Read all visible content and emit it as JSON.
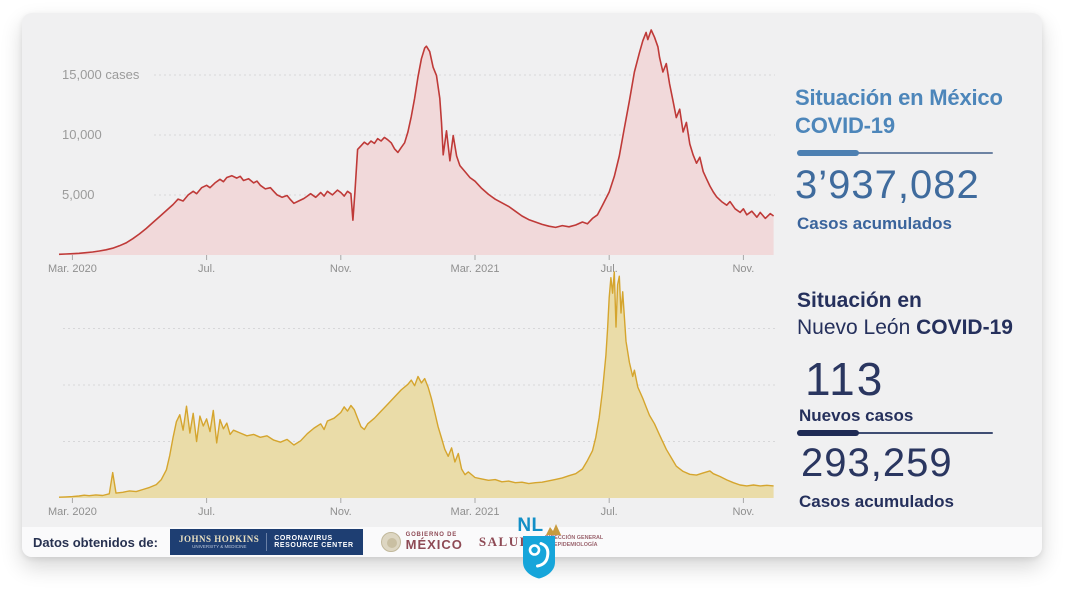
{
  "right_panel": {
    "mexico": {
      "title_line1": "Situación en México",
      "title_line2": "COVID-19",
      "cumulative_value": "3’937,082",
      "cumulative_label": "Casos acumulados"
    },
    "nuevo_leon": {
      "title_line1": "Situación en",
      "title_line2_regular": "Nuevo León ",
      "title_line2_bold": "COVID-19",
      "new_cases_value": "113",
      "new_cases_label": "Nuevos casos",
      "cumulative_value": "293,259",
      "cumulative_label": "Casos acumulados"
    }
  },
  "footer": {
    "source_label": "Datos obtenidos de:",
    "johns_hopkins": {
      "name_line1": "JOHNS HOPKINS",
      "name_line2": "UNIVERSITY & MEDICINE",
      "center_line1": "CORONAVIRUS",
      "center_line2": "RESOURCE CENTER"
    },
    "gobierno_mexico": {
      "line1": "GOBIERNO DE",
      "line2": "MÉXICO"
    },
    "salud_label": "SALUD",
    "direccion": {
      "line1": "DIRECCIÓN GENERAL",
      "line2": "DE EPIDEMIOLOGÍA"
    },
    "nuevo_leon_logo_text": "NL"
  },
  "colors": {
    "mexico_line": "#bf3a38",
    "mexico_fill": "#f1d9da",
    "nuevo_leon_line": "#d5a52e",
    "nuevo_leon_fill": "#eadca8",
    "title_blue": "#4d86ba",
    "number_blue": "#3f6b9d",
    "navy": "#25305c",
    "maroon": "#8e4a55",
    "johns_hopkins_navy": "#1e3e72",
    "nl_shield_blue": "#16a5da",
    "nl_gold": "#c89b3f",
    "card_background": "#f0f0f1"
  },
  "chart_data": [
    {
      "type": "area",
      "name": "mexico-daily-cases",
      "line_color": "#bf3a38",
      "fill_color": "#f1d9da",
      "line_width": 1.6,
      "ylim": [
        0,
        20000
      ],
      "x_range": [
        -0.4,
        21.0
      ],
      "gridlines": [
        {
          "value": 5000,
          "label": "5,000"
        },
        {
          "value": 10000,
          "label": "10,000"
        },
        {
          "value": 15000,
          "label": "15,000 cases"
        }
      ],
      "x_ticks": [
        {
          "month": 0,
          "label": "Mar. 2020"
        },
        {
          "month": 4,
          "label": "Jul."
        },
        {
          "month": 8,
          "label": "Nov."
        },
        {
          "month": 12,
          "label": "Mar. 2021"
        },
        {
          "month": 16,
          "label": "Jul."
        },
        {
          "month": 20,
          "label": "Nov."
        }
      ],
      "points": [
        [
          -0.4,
          60
        ],
        [
          -0.2,
          80
        ],
        [
          0,
          110
        ],
        [
          0.2,
          140
        ],
        [
          0.4,
          190
        ],
        [
          0.6,
          250
        ],
        [
          0.8,
          330
        ],
        [
          1,
          430
        ],
        [
          1.2,
          570
        ],
        [
          1.4,
          770
        ],
        [
          1.6,
          1010
        ],
        [
          1.8,
          1360
        ],
        [
          2,
          1760
        ],
        [
          2.2,
          2210
        ],
        [
          2.4,
          2710
        ],
        [
          2.6,
          3210
        ],
        [
          2.8,
          3710
        ],
        [
          3,
          4210
        ],
        [
          3.15,
          4660
        ],
        [
          3.3,
          4500
        ],
        [
          3.45,
          5010
        ],
        [
          3.6,
          5310
        ],
        [
          3.7,
          5110
        ],
        [
          3.85,
          5610
        ],
        [
          4,
          5810
        ],
        [
          4.1,
          5610
        ],
        [
          4.25,
          6010
        ],
        [
          4.4,
          6310
        ],
        [
          4.5,
          6110
        ],
        [
          4.6,
          6460
        ],
        [
          4.75,
          6610
        ],
        [
          4.9,
          6410
        ],
        [
          5,
          6560
        ],
        [
          5.1,
          6210
        ],
        [
          5.25,
          6360
        ],
        [
          5.4,
          6010
        ],
        [
          5.5,
          6160
        ],
        [
          5.6,
          5810
        ],
        [
          5.75,
          5510
        ],
        [
          5.9,
          5610
        ],
        [
          6,
          5310
        ],
        [
          6.1,
          5010
        ],
        [
          6.25,
          4810
        ],
        [
          6.4,
          4960
        ],
        [
          6.5,
          4610
        ],
        [
          6.6,
          4310
        ],
        [
          6.75,
          4510
        ],
        [
          6.9,
          4710
        ],
        [
          7,
          4910
        ],
        [
          7.1,
          5110
        ],
        [
          7.25,
          4810
        ],
        [
          7.4,
          5210
        ],
        [
          7.5,
          4910
        ],
        [
          7.6,
          5310
        ],
        [
          7.75,
          5010
        ],
        [
          7.9,
          5410
        ],
        [
          8,
          5210
        ],
        [
          8.1,
          4910
        ],
        [
          8.2,
          5310
        ],
        [
          8.3,
          5110
        ],
        [
          8.36,
          2900
        ],
        [
          8.42,
          5200
        ],
        [
          8.5,
          8800
        ],
        [
          8.6,
          9100
        ],
        [
          8.7,
          9400
        ],
        [
          8.8,
          9200
        ],
        [
          8.9,
          9500
        ],
        [
          9,
          9300
        ],
        [
          9.1,
          9700
        ],
        [
          9.2,
          9500
        ],
        [
          9.3,
          9800
        ],
        [
          9.4,
          9600
        ],
        [
          9.5,
          9350
        ],
        [
          9.6,
          8850
        ],
        [
          9.7,
          8550
        ],
        [
          9.8,
          8950
        ],
        [
          9.9,
          9350
        ],
        [
          10,
          10250
        ],
        [
          10.1,
          11550
        ],
        [
          10.2,
          13050
        ],
        [
          10.3,
          14850
        ],
        [
          10.4,
          16350
        ],
        [
          10.5,
          17250
        ],
        [
          10.55,
          17400
        ],
        [
          10.65,
          16950
        ],
        [
          10.75,
          15650
        ],
        [
          10.85,
          14950
        ],
        [
          10.95,
          13050
        ],
        [
          11,
          11050
        ],
        [
          11.05,
          8350
        ],
        [
          11.15,
          10350
        ],
        [
          11.25,
          7850
        ],
        [
          11.35,
          9950
        ],
        [
          11.45,
          8250
        ],
        [
          11.55,
          7450
        ],
        [
          11.7,
          6950
        ],
        [
          11.85,
          6450
        ],
        [
          12,
          6150
        ],
        [
          12.2,
          5550
        ],
        [
          12.4,
          5050
        ],
        [
          12.6,
          4650
        ],
        [
          12.8,
          4350
        ],
        [
          13,
          4050
        ],
        [
          13.2,
          3650
        ],
        [
          13.4,
          3250
        ],
        [
          13.6,
          2950
        ],
        [
          13.8,
          2750
        ],
        [
          14,
          2550
        ],
        [
          14.2,
          2400
        ],
        [
          14.4,
          2300
        ],
        [
          14.6,
          2450
        ],
        [
          14.8,
          2350
        ],
        [
          15,
          2500
        ],
        [
          15.2,
          2750
        ],
        [
          15.35,
          2600
        ],
        [
          15.5,
          3050
        ],
        [
          15.65,
          3350
        ],
        [
          15.8,
          4150
        ],
        [
          16,
          5250
        ],
        [
          16.15,
          6550
        ],
        [
          16.3,
          8250
        ],
        [
          16.45,
          10550
        ],
        [
          16.6,
          12850
        ],
        [
          16.75,
          15250
        ],
        [
          16.9,
          16850
        ],
        [
          17,
          17850
        ],
        [
          17.1,
          18550
        ],
        [
          17.15,
          17950
        ],
        [
          17.25,
          18750
        ],
        [
          17.35,
          18150
        ],
        [
          17.45,
          17350
        ],
        [
          17.5,
          16450
        ],
        [
          17.6,
          15250
        ],
        [
          17.7,
          15950
        ],
        [
          17.8,
          14250
        ],
        [
          17.9,
          12850
        ],
        [
          18,
          11450
        ],
        [
          18.1,
          12150
        ],
        [
          18.2,
          10250
        ],
        [
          18.3,
          11050
        ],
        [
          18.4,
          9250
        ],
        [
          18.5,
          8350
        ],
        [
          18.6,
          7650
        ],
        [
          18.7,
          8150
        ],
        [
          18.8,
          6950
        ],
        [
          18.9,
          6350
        ],
        [
          19,
          5750
        ],
        [
          19.1,
          5250
        ],
        [
          19.2,
          4850
        ],
        [
          19.35,
          4450
        ],
        [
          19.5,
          4150
        ],
        [
          19.6,
          4450
        ],
        [
          19.75,
          3850
        ],
        [
          19.9,
          3550
        ],
        [
          20,
          3850
        ],
        [
          20.1,
          3350
        ],
        [
          20.25,
          3650
        ],
        [
          20.4,
          3150
        ],
        [
          20.5,
          3550
        ],
        [
          20.65,
          3050
        ],
        [
          20.8,
          3450
        ],
        [
          20.9,
          3250
        ]
      ]
    },
    {
      "type": "area",
      "name": "nuevo-leon-daily-cases",
      "line_color": "#d5a52e",
      "fill_color": "#eadca8",
      "line_width": 1.4,
      "ylim": [
        0,
        1600
      ],
      "x_range": [
        -0.4,
        21.0
      ],
      "gridlines": [
        {
          "value": 400,
          "label": ""
        },
        {
          "value": 800,
          "label": ""
        },
        {
          "value": 1200,
          "label": ""
        }
      ],
      "x_ticks": [
        {
          "month": 0,
          "label": "Mar. 2020"
        },
        {
          "month": 4,
          "label": "Jul."
        },
        {
          "month": 8,
          "label": "Nov."
        },
        {
          "month": 12,
          "label": "Mar. 2021"
        },
        {
          "month": 16,
          "label": "Jul."
        },
        {
          "month": 20,
          "label": "Nov."
        }
      ],
      "points": [
        [
          -0.4,
          6
        ],
        [
          -0.2,
          8
        ],
        [
          0,
          10
        ],
        [
          0.2,
          14
        ],
        [
          0.35,
          20
        ],
        [
          0.5,
          16
        ],
        [
          0.7,
          22
        ],
        [
          0.9,
          18
        ],
        [
          1.1,
          30
        ],
        [
          1.2,
          180
        ],
        [
          1.3,
          35
        ],
        [
          1.5,
          40
        ],
        [
          1.7,
          50
        ],
        [
          1.9,
          45
        ],
        [
          2.1,
          60
        ],
        [
          2.3,
          75
        ],
        [
          2.5,
          95
        ],
        [
          2.65,
          130
        ],
        [
          2.8,
          200
        ],
        [
          2.9,
          300
        ],
        [
          3,
          430
        ],
        [
          3.1,
          540
        ],
        [
          3.2,
          590
        ],
        [
          3.3,
          480
        ],
        [
          3.4,
          650
        ],
        [
          3.5,
          460
        ],
        [
          3.6,
          600
        ],
        [
          3.7,
          400
        ],
        [
          3.8,
          580
        ],
        [
          3.9,
          510
        ],
        [
          4,
          560
        ],
        [
          4.1,
          470
        ],
        [
          4.2,
          620
        ],
        [
          4.3,
          390
        ],
        [
          4.4,
          555
        ],
        [
          4.5,
          490
        ],
        [
          4.6,
          530
        ],
        [
          4.7,
          450
        ],
        [
          4.8,
          480
        ],
        [
          5,
          460
        ],
        [
          5.2,
          440
        ],
        [
          5.4,
          450
        ],
        [
          5.6,
          430
        ],
        [
          5.8,
          440
        ],
        [
          6,
          410
        ],
        [
          6.2,
          395
        ],
        [
          6.4,
          415
        ],
        [
          6.6,
          375
        ],
        [
          6.8,
          405
        ],
        [
          7,
          455
        ],
        [
          7.2,
          495
        ],
        [
          7.4,
          525
        ],
        [
          7.5,
          485
        ],
        [
          7.6,
          545
        ],
        [
          7.8,
          565
        ],
        [
          8,
          605
        ],
        [
          8.1,
          645
        ],
        [
          8.2,
          615
        ],
        [
          8.3,
          655
        ],
        [
          8.4,
          625
        ],
        [
          8.5,
          565
        ],
        [
          8.6,
          505
        ],
        [
          8.7,
          485
        ],
        [
          8.8,
          525
        ],
        [
          9,
          565
        ],
        [
          9.2,
          615
        ],
        [
          9.4,
          665
        ],
        [
          9.6,
          715
        ],
        [
          9.8,
          765
        ],
        [
          10,
          805
        ],
        [
          10.1,
          835
        ],
        [
          10.2,
          795
        ],
        [
          10.3,
          860
        ],
        [
          10.4,
          815
        ],
        [
          10.5,
          845
        ],
        [
          10.6,
          785
        ],
        [
          10.7,
          705
        ],
        [
          10.8,
          605
        ],
        [
          10.9,
          505
        ],
        [
          11,
          425
        ],
        [
          11.1,
          345
        ],
        [
          11.2,
          295
        ],
        [
          11.3,
          355
        ],
        [
          11.4,
          255
        ],
        [
          11.5,
          315
        ],
        [
          11.6,
          205
        ],
        [
          11.7,
          165
        ],
        [
          11.8,
          185
        ],
        [
          12,
          145
        ],
        [
          12.2,
          135
        ],
        [
          12.4,
          125
        ],
        [
          12.6,
          130
        ],
        [
          12.8,
          115
        ],
        [
          13,
          120
        ],
        [
          13.2,
          108
        ],
        [
          13.4,
          112
        ],
        [
          13.6,
          102
        ],
        [
          13.8,
          108
        ],
        [
          14,
          112
        ],
        [
          14.2,
          122
        ],
        [
          14.4,
          132
        ],
        [
          14.6,
          142
        ],
        [
          14.8,
          158
        ],
        [
          15,
          172
        ],
        [
          15.2,
          205
        ],
        [
          15.35,
          265
        ],
        [
          15.5,
          335
        ],
        [
          15.6,
          430
        ],
        [
          15.7,
          570
        ],
        [
          15.8,
          760
        ],
        [
          15.9,
          1010
        ],
        [
          15.95,
          1200
        ],
        [
          16,
          1420
        ],
        [
          16.05,
          1560
        ],
        [
          16.1,
          1450
        ],
        [
          16.15,
          1600
        ],
        [
          16.2,
          1210
        ],
        [
          16.25,
          1510
        ],
        [
          16.3,
          1570
        ],
        [
          16.35,
          1310
        ],
        [
          16.4,
          1460
        ],
        [
          16.5,
          1110
        ],
        [
          16.6,
          960
        ],
        [
          16.7,
          860
        ],
        [
          16.75,
          905
        ],
        [
          16.85,
          785
        ],
        [
          17,
          705
        ],
        [
          17.1,
          645
        ],
        [
          17.2,
          585
        ],
        [
          17.35,
          525
        ],
        [
          17.5,
          445
        ],
        [
          17.7,
          345
        ],
        [
          17.9,
          265
        ],
        [
          18,
          225
        ],
        [
          18.2,
          188
        ],
        [
          18.4,
          168
        ],
        [
          18.6,
          162
        ],
        [
          18.8,
          178
        ],
        [
          19,
          192
        ],
        [
          19.1,
          172
        ],
        [
          19.3,
          152
        ],
        [
          19.5,
          128
        ],
        [
          19.7,
          108
        ],
        [
          19.9,
          92
        ],
        [
          20.1,
          86
        ],
        [
          20.3,
          92
        ],
        [
          20.5,
          86
        ],
        [
          20.7,
          90
        ],
        [
          20.9,
          86
        ]
      ]
    }
  ]
}
